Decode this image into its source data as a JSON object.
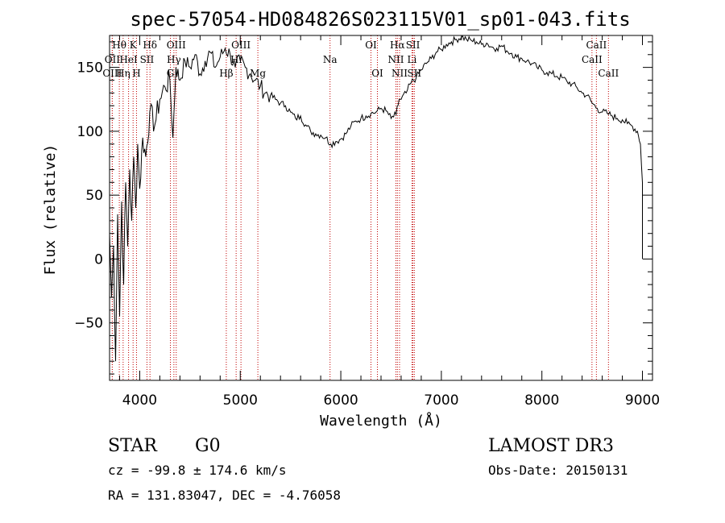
{
  "chart_data": {
    "type": "line",
    "title": "spec-57054-HD084826S023115V01_sp01-043.fits",
    "xlabel": "Wavelength (Å)",
    "ylabel": "Flux (relative)",
    "xlim": [
      3700,
      9100
    ],
    "ylim": [
      -95,
      175
    ],
    "xticks": [
      4000,
      5000,
      6000,
      7000,
      8000,
      9000
    ],
    "xtick_labels": [
      "4000",
      "5000",
      "6000",
      "7000",
      "8000",
      "9000"
    ],
    "yticks": [
      -50,
      0,
      50,
      100,
      150
    ],
    "ytick_labels": [
      "−50",
      "0",
      "50",
      "100",
      "150"
    ],
    "series": [
      {
        "name": "spectrum",
        "x": [
          3700,
          3720,
          3740,
          3760,
          3780,
          3800,
          3820,
          3840,
          3860,
          3880,
          3900,
          3920,
          3940,
          3960,
          3980,
          4000,
          4030,
          4060,
          4100,
          4150,
          4200,
          4250,
          4300,
          4330,
          4360,
          4400,
          4450,
          4500,
          4550,
          4600,
          4650,
          4700,
          4750,
          4800,
          4850,
          4900,
          4950,
          5000,
          5050,
          5100,
          5150,
          5200,
          5250,
          5300,
          5350,
          5400,
          5450,
          5500,
          5550,
          5600,
          5650,
          5700,
          5750,
          5800,
          5850,
          5900,
          5950,
          6000,
          6050,
          6100,
          6150,
          6200,
          6250,
          6300,
          6350,
          6400,
          6450,
          6500,
          6550,
          6580,
          6600,
          6650,
          6700,
          6750,
          6800,
          6850,
          6900,
          6950,
          7000,
          7050,
          7100,
          7150,
          7200,
          7250,
          7300,
          7350,
          7400,
          7450,
          7500,
          7550,
          7600,
          7650,
          7700,
          7750,
          7800,
          7850,
          7900,
          7950,
          8000,
          8050,
          8100,
          8150,
          8200,
          8250,
          8300,
          8350,
          8400,
          8450,
          8500,
          8550,
          8600,
          8650,
          8700,
          8750,
          8800,
          8850,
          8900,
          8950,
          8980,
          9000,
          9000
        ],
        "y": [
          20,
          -30,
          10,
          -80,
          35,
          -45,
          45,
          -20,
          60,
          10,
          70,
          30,
          80,
          40,
          90,
          55,
          95,
          80,
          115,
          105,
          125,
          135,
          140,
          95,
          150,
          140,
          155,
          150,
          160,
          145,
          155,
          162,
          150,
          158,
          165,
          160,
          150,
          155,
          150,
          145,
          140,
          135,
          130,
          128,
          125,
          122,
          120,
          115,
          110,
          112,
          105,
          100,
          98,
          97,
          95,
          90,
          92,
          94,
          98,
          104,
          108,
          110,
          112,
          114,
          115,
          118,
          116,
          110,
          113,
          125,
          125,
          130,
          138,
          142,
          148,
          153,
          157,
          162,
          164,
          168,
          170,
          172,
          174,
          172,
          171,
          170,
          168,
          169,
          166,
          165,
          167,
          163,
          161,
          158,
          157,
          155,
          153,
          150,
          148,
          146,
          145,
          143,
          142,
          139,
          137,
          134,
          130,
          128,
          122,
          118,
          115,
          114,
          112,
          110,
          109,
          106,
          104,
          100,
          90,
          60,
          0
        ]
      }
    ],
    "emission_lines": [
      {
        "label": "Hθ",
        "x": 3797,
        "row": 0
      },
      {
        "label": "OII",
        "x": 3727,
        "row": 1
      },
      {
        "label": "OIII",
        "x": 3727,
        "row": 2
      },
      {
        "label": "K",
        "x": 3934,
        "row": 0
      },
      {
        "label": "HeI",
        "x": 3889,
        "row": 1
      },
      {
        "label": "Hη",
        "x": 3835,
        "row": 2
      },
      {
        "label": "Hδ",
        "x": 4102,
        "row": 0
      },
      {
        "label": "SII",
        "x": 4072,
        "row": 1
      },
      {
        "label": "H",
        "x": 3968,
        "row": 2
      },
      {
        "label": "OIII",
        "x": 4363,
        "row": 0
      },
      {
        "label": "Hγ",
        "x": 4340,
        "row": 1
      },
      {
        "label": "G",
        "x": 4305,
        "row": 2
      },
      {
        "label": "OIII",
        "x": 5007,
        "row": 0
      },
      {
        "label": "Hi",
        "x": 4959,
        "row": 1
      },
      {
        "label": "Hβ",
        "x": 4861,
        "row": 2
      },
      {
        "label": "Mg",
        "x": 5175,
        "row": 2
      },
      {
        "label": "Na",
        "x": 5893,
        "row": 1
      },
      {
        "label": "OI",
        "x": 6300,
        "row": 0
      },
      {
        "label": "OI",
        "x": 6364,
        "row": 2
      },
      {
        "label": "Hα",
        "x": 6563,
        "row": 0
      },
      {
        "label": "NII",
        "x": 6548,
        "row": 1
      },
      {
        "label": "NII",
        "x": 6584,
        "row": 2
      },
      {
        "label": "SII",
        "x": 6717,
        "row": 0
      },
      {
        "label": "Li",
        "x": 6708,
        "row": 1
      },
      {
        "label": "SII",
        "x": 6731,
        "row": 2
      },
      {
        "label": "CaII",
        "x": 8542,
        "row": 0
      },
      {
        "label": "CaII",
        "x": 8498,
        "row": 1
      },
      {
        "label": "CaII",
        "x": 8662,
        "row": 2
      }
    ]
  },
  "info": {
    "object_class": "STAR",
    "subclass": "G0",
    "survey": "LAMOST DR3",
    "cz": "cz = -99.8 ± 174.6 km/s",
    "obs_date": "Obs-Date: 20150131",
    "radec": "RA = 131.83047, DEC =  -4.76058"
  }
}
